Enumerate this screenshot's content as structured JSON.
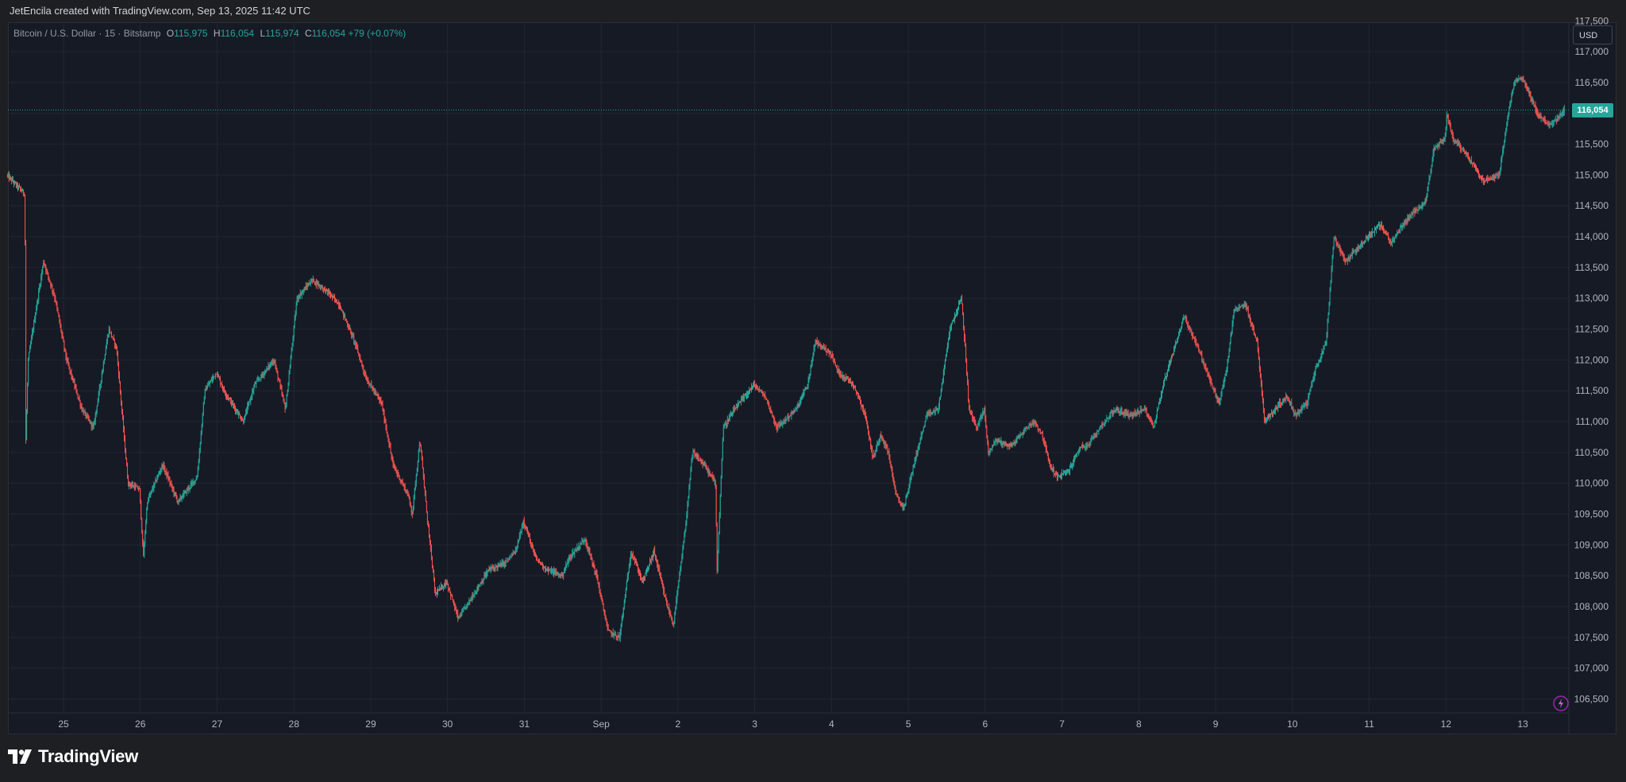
{
  "header": {
    "attribution": "JetEncila created with TradingView.com, Sep 13, 2025 11:42 UTC"
  },
  "legend": {
    "symbol": "Bitcoin / U.S. Dollar · 15 · Bitstamp",
    "open_label": "O",
    "open": "115,975",
    "high_label": "H",
    "high": "116,054",
    "low_label": "L",
    "low": "115,974",
    "close_label": "C",
    "close": "116,054",
    "change": "+79 (+0.07%)"
  },
  "currency_button": "USD",
  "footer": {
    "brand": "TradingView"
  },
  "colors": {
    "background": "#161a25",
    "grid": "#232632",
    "up": "#26a69a",
    "down": "#ef5350",
    "axis_text": "#b2b5be",
    "price_line": "#26a69a"
  },
  "icons": [
    "tradingview-logo-icon",
    "flash-icon"
  ],
  "chart_data": {
    "type": "candlestick",
    "title": "Bitcoin / U.S. Dollar · 15 · Bitstamp",
    "xlabel": "",
    "ylabel": "",
    "currency": "USD",
    "interval": "15",
    "exchange": "Bitstamp",
    "last_price": "116,054",
    "ylim": [
      106250,
      117500
    ],
    "y_ticks": [
      106500,
      107000,
      107500,
      108000,
      108500,
      109000,
      109500,
      110000,
      110500,
      111000,
      111500,
      112000,
      112500,
      113000,
      113500,
      114000,
      114500,
      115000,
      115500,
      116000,
      116500,
      117000
    ],
    "y_tick_labels": [
      "106,500",
      "107,000",
      "107,500",
      "108,000",
      "108,500",
      "109,000",
      "109,500",
      "110,000",
      "110,500",
      "111,000",
      "111,500",
      "112,000",
      "112,500",
      "113,000",
      "113,500",
      "114,000",
      "114,500",
      "115,000",
      "115,500",
      "116,000",
      "116,500",
      "117,000"
    ],
    "x_ticks": [
      {
        "label": "25",
        "day": 1.0
      },
      {
        "label": "26",
        "day": 2.0
      },
      {
        "label": "27",
        "day": 3.0
      },
      {
        "label": "28",
        "day": 4.0
      },
      {
        "label": "29",
        "day": 5.0
      },
      {
        "label": "30",
        "day": 6.0
      },
      {
        "label": "31",
        "day": 7.0
      },
      {
        "label": "Sep",
        "day": 8.0
      },
      {
        "label": "2",
        "day": 9.0
      },
      {
        "label": "3",
        "day": 10.0
      },
      {
        "label": "4",
        "day": 11.0
      },
      {
        "label": "5",
        "day": 12.0
      },
      {
        "label": "6",
        "day": 13.0
      },
      {
        "label": "7",
        "day": 14.0
      },
      {
        "label": "8",
        "day": 15.0
      },
      {
        "label": "9",
        "day": 16.0
      },
      {
        "label": "10",
        "day": 17.0
      },
      {
        "label": "11",
        "day": 18.0
      },
      {
        "label": "12",
        "day": 19.0
      },
      {
        "label": "13",
        "day": 20.0
      }
    ],
    "x_range": [
      0.27,
      20.6
    ],
    "series": [
      {
        "name": "BTCUSD",
        "points": [
          [
            0.27,
            115000
          ],
          [
            0.5,
            114700
          ],
          [
            0.5,
            114300
          ],
          [
            0.52,
            113500
          ],
          [
            0.52,
            110700
          ],
          [
            0.55,
            112000
          ],
          [
            0.75,
            113600
          ],
          [
            0.9,
            113000
          ],
          [
            1.05,
            112000
          ],
          [
            1.25,
            111200
          ],
          [
            1.4,
            110900
          ],
          [
            1.6,
            112500
          ],
          [
            1.7,
            112200
          ],
          [
            1.85,
            110000
          ],
          [
            2.0,
            109900
          ],
          [
            2.05,
            108800
          ],
          [
            2.1,
            109700
          ],
          [
            2.3,
            110300
          ],
          [
            2.5,
            109700
          ],
          [
            2.75,
            110100
          ],
          [
            2.85,
            111500
          ],
          [
            3.0,
            111800
          ],
          [
            3.1,
            111500
          ],
          [
            3.35,
            111000
          ],
          [
            3.5,
            111600
          ],
          [
            3.75,
            112000
          ],
          [
            3.9,
            111200
          ],
          [
            4.05,
            113000
          ],
          [
            4.25,
            113300
          ],
          [
            4.45,
            113100
          ],
          [
            4.6,
            112900
          ],
          [
            4.8,
            112300
          ],
          [
            4.95,
            111700
          ],
          [
            5.15,
            111300
          ],
          [
            5.3,
            110300
          ],
          [
            5.5,
            109800
          ],
          [
            5.55,
            109500
          ],
          [
            5.65,
            110700
          ],
          [
            5.75,
            109400
          ],
          [
            5.85,
            108200
          ],
          [
            6.0,
            108400
          ],
          [
            6.15,
            107800
          ],
          [
            6.35,
            108200
          ],
          [
            6.55,
            108600
          ],
          [
            6.75,
            108700
          ],
          [
            6.9,
            108900
          ],
          [
            7.0,
            109400
          ],
          [
            7.15,
            108800
          ],
          [
            7.3,
            108600
          ],
          [
            7.5,
            108500
          ],
          [
            7.6,
            108800
          ],
          [
            7.8,
            109100
          ],
          [
            7.95,
            108500
          ],
          [
            8.1,
            107600
          ],
          [
            8.25,
            107500
          ],
          [
            8.4,
            108900
          ],
          [
            8.55,
            108400
          ],
          [
            8.7,
            108900
          ],
          [
            8.85,
            108100
          ],
          [
            8.95,
            107700
          ],
          [
            9.1,
            109200
          ],
          [
            9.2,
            110500
          ],
          [
            9.35,
            110300
          ],
          [
            9.5,
            110000
          ],
          [
            9.52,
            108600
          ],
          [
            9.6,
            110900
          ],
          [
            9.75,
            111200
          ],
          [
            10.0,
            111600
          ],
          [
            10.15,
            111400
          ],
          [
            10.3,
            110900
          ],
          [
            10.55,
            111200
          ],
          [
            10.7,
            111600
          ],
          [
            10.8,
            112300
          ],
          [
            11.0,
            112100
          ],
          [
            11.1,
            111800
          ],
          [
            11.3,
            111600
          ],
          [
            11.45,
            111100
          ],
          [
            11.55,
            110400
          ],
          [
            11.65,
            110800
          ],
          [
            11.75,
            110500
          ],
          [
            11.85,
            109800
          ],
          [
            11.95,
            109600
          ],
          [
            12.1,
            110400
          ],
          [
            12.25,
            111100
          ],
          [
            12.4,
            111200
          ],
          [
            12.55,
            112500
          ],
          [
            12.7,
            113000
          ],
          [
            12.75,
            112200
          ],
          [
            12.8,
            111200
          ],
          [
            12.9,
            110900
          ],
          [
            13.0,
            111200
          ],
          [
            13.05,
            110500
          ],
          [
            13.15,
            110700
          ],
          [
            13.35,
            110600
          ],
          [
            13.55,
            110900
          ],
          [
            13.65,
            111000
          ],
          [
            13.75,
            110800
          ],
          [
            13.85,
            110300
          ],
          [
            13.95,
            110100
          ],
          [
            14.1,
            110200
          ],
          [
            14.25,
            110600
          ],
          [
            14.35,
            110600
          ],
          [
            14.5,
            110900
          ],
          [
            14.7,
            111200
          ],
          [
            14.9,
            111100
          ],
          [
            15.1,
            111200
          ],
          [
            15.2,
            110900
          ],
          [
            15.35,
            111700
          ],
          [
            15.45,
            112100
          ],
          [
            15.6,
            112700
          ],
          [
            15.75,
            112300
          ],
          [
            15.9,
            111800
          ],
          [
            16.05,
            111300
          ],
          [
            16.15,
            111800
          ],
          [
            16.25,
            112800
          ],
          [
            16.4,
            112900
          ],
          [
            16.55,
            112300
          ],
          [
            16.65,
            111000
          ],
          [
            16.85,
            111300
          ],
          [
            16.95,
            111400
          ],
          [
            17.05,
            111100
          ],
          [
            17.2,
            111300
          ],
          [
            17.3,
            111800
          ],
          [
            17.45,
            112300
          ],
          [
            17.55,
            114000
          ],
          [
            17.7,
            113600
          ],
          [
            17.85,
            113800
          ],
          [
            18.0,
            114000
          ],
          [
            18.15,
            114200
          ],
          [
            18.3,
            113900
          ],
          [
            18.45,
            114200
          ],
          [
            18.6,
            114400
          ],
          [
            18.75,
            114600
          ],
          [
            18.85,
            115400
          ],
          [
            19.0,
            115600
          ],
          [
            19.02,
            116000
          ],
          [
            19.1,
            115600
          ],
          [
            19.3,
            115300
          ],
          [
            19.5,
            114900
          ],
          [
            19.7,
            115000
          ],
          [
            19.75,
            115400
          ],
          [
            19.85,
            116200
          ],
          [
            19.9,
            116500
          ],
          [
            20.0,
            116600
          ],
          [
            20.1,
            116300
          ],
          [
            20.2,
            116000
          ],
          [
            20.35,
            115800
          ],
          [
            20.45,
            115900
          ],
          [
            20.55,
            116054
          ]
        ]
      }
    ]
  }
}
